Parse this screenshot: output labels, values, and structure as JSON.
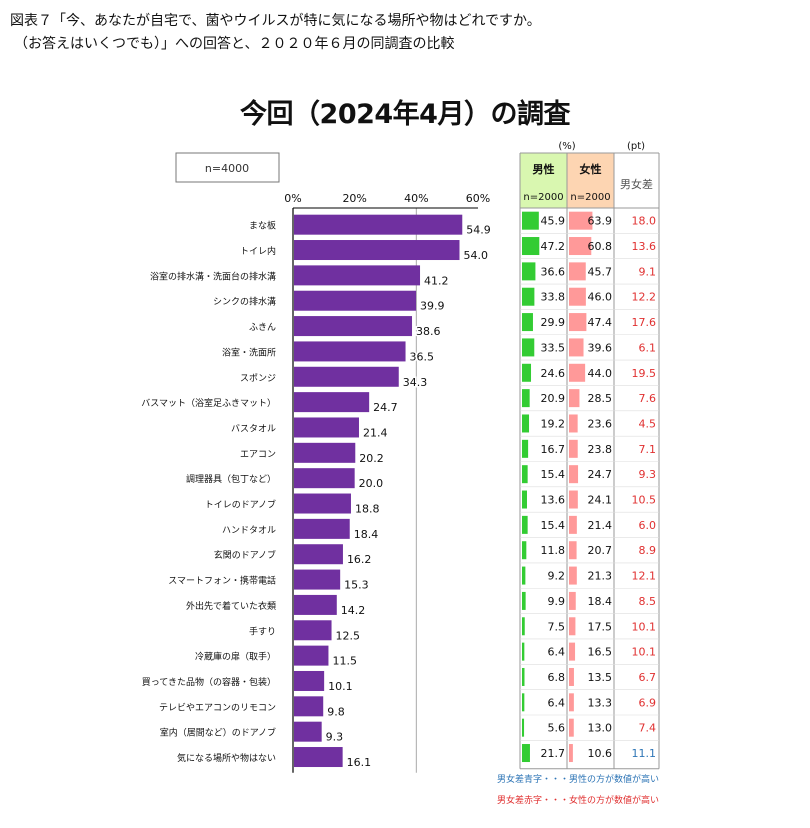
{
  "header": {
    "line1": "図表７「今、あなたが自宅で、菌やウイルスが特に気になる場所や物はどれですか。",
    "line2": "（お答えはいくつでも）」への回答と、２０２０年６月の同調査の比較"
  },
  "legend_notes": {
    "blue": "男女差青字・・・男性の方が数値が高い",
    "red": "男女差赤字・・・女性の方が数値が高い"
  },
  "colors": {
    "bar": "#7030a0",
    "male_bar": "#33cc33",
    "female_bar": "#ff9999",
    "male_header_bg": "#d9f7b0",
    "female_header_bg": "#fdd5b2",
    "diff_female_higher": "#e03030",
    "diff_male_higher": "#2e75b6"
  },
  "chart_data": {
    "type": "bar",
    "orientation": "horizontal",
    "title": "今回（2024年4月）の調査",
    "sample_label": "n=4000",
    "xlim": [
      0,
      60
    ],
    "xticks": [
      "0%",
      "20%",
      "40%",
      "60%"
    ],
    "grid": "vertical-at-40",
    "categories": [
      "まな板",
      "トイレ内",
      "浴室の排水溝・洗面台の排水溝",
      "シンクの排水溝",
      "ふきん",
      "浴室・洗面所",
      "スポンジ",
      "バスマット（浴室足ふきマット）",
      "バスタオル",
      "エアコン",
      "調理器具（包丁など）",
      "トイレのドアノブ",
      "ハンドタオル",
      "玄関のドアノブ",
      "スマートフォン・携帯電話",
      "外出先で着ていた衣類",
      "手すり",
      "冷蔵庫の扉（取手）",
      "買ってきた品物（の容器・包装）",
      "テレビやエアコンのリモコン",
      "室内（居間など）のドアノブ",
      "気になる場所や物はない"
    ],
    "values": [
      54.9,
      54.0,
      41.2,
      39.9,
      38.6,
      36.5,
      34.3,
      24.7,
      21.4,
      20.2,
      20.0,
      18.8,
      18.4,
      16.2,
      15.3,
      14.2,
      12.5,
      11.5,
      10.1,
      9.8,
      9.3,
      16.1
    ],
    "table": {
      "unit_pct": "(%)",
      "unit_pt": "(pt)",
      "male_label": "男性",
      "female_label": "女性",
      "male_n": "n=2000",
      "female_n": "n=2000",
      "diff_label": "男女差",
      "male": [
        45.9,
        47.2,
        36.6,
        33.8,
        29.9,
        33.5,
        24.6,
        20.9,
        19.2,
        16.7,
        15.4,
        13.6,
        15.4,
        11.8,
        9.2,
        9.9,
        7.5,
        6.4,
        6.8,
        6.4,
        5.6,
        21.7
      ],
      "female": [
        63.9,
        60.8,
        45.7,
        46.0,
        47.4,
        39.6,
        44.0,
        28.5,
        23.6,
        23.8,
        24.7,
        24.1,
        21.4,
        20.7,
        21.3,
        18.4,
        17.5,
        16.5,
        13.5,
        13.3,
        13.0,
        10.6
      ],
      "diff": [
        18.0,
        13.6,
        9.1,
        12.2,
        17.6,
        6.1,
        19.5,
        7.6,
        4.5,
        7.1,
        9.3,
        10.5,
        6.0,
        8.9,
        12.1,
        8.5,
        10.1,
        10.1,
        6.7,
        6.9,
        7.4,
        11.1
      ],
      "diff_higher": [
        "female",
        "female",
        "female",
        "female",
        "female",
        "female",
        "female",
        "female",
        "female",
        "female",
        "female",
        "female",
        "female",
        "female",
        "female",
        "female",
        "female",
        "female",
        "female",
        "female",
        "female",
        "male"
      ]
    }
  }
}
